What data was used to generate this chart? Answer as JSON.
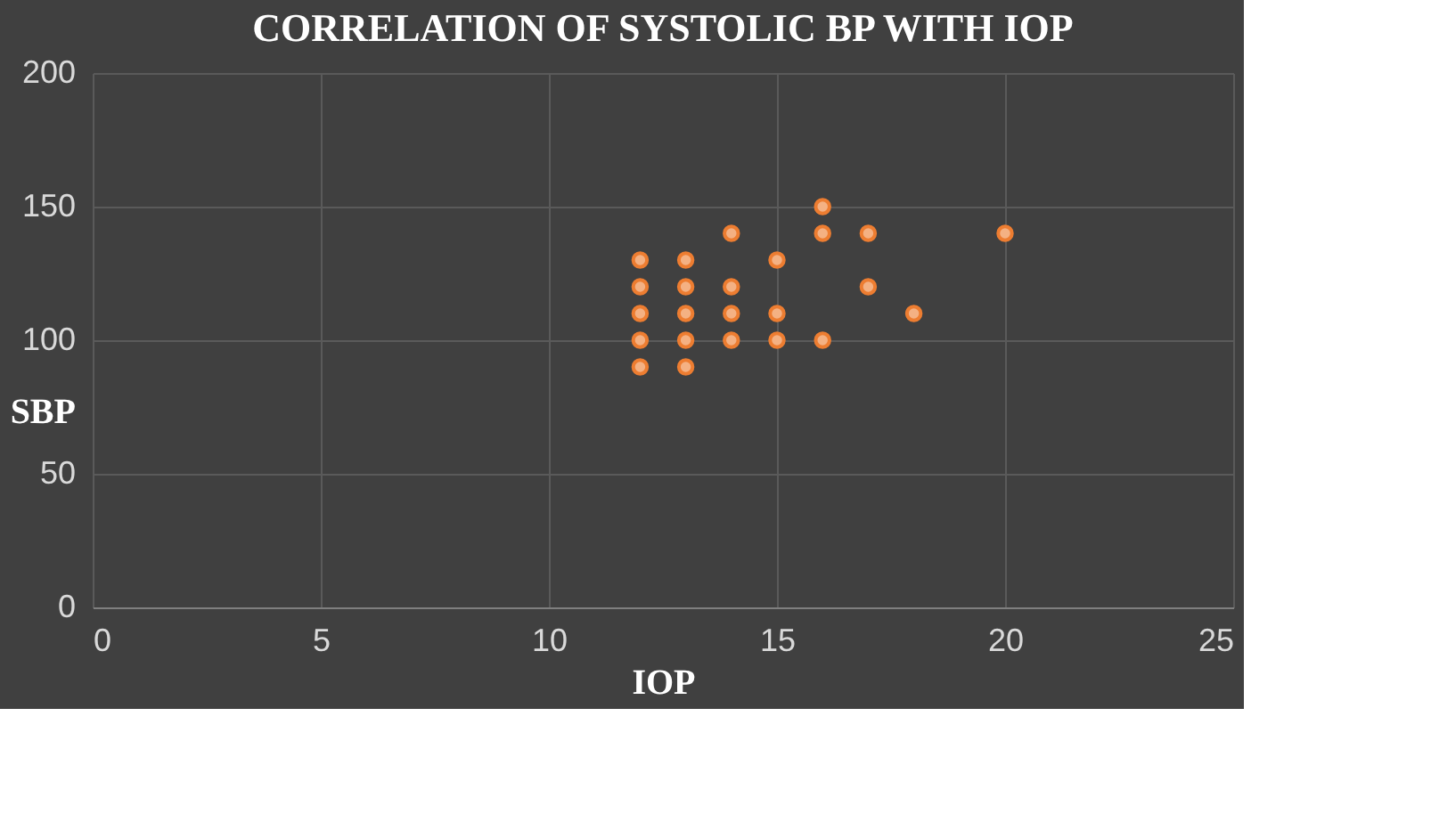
{
  "chart_data": {
    "type": "scatter",
    "title": "CORRELATION OF SYSTOLIC BP WITH IOP",
    "xlabel": "IOP",
    "ylabel": "SBP",
    "x": [
      12,
      12,
      12,
      12,
      12,
      13,
      13,
      13,
      13,
      13,
      14,
      14,
      14,
      14,
      15,
      15,
      15,
      16,
      16,
      16,
      17,
      17,
      18,
      20
    ],
    "series": [
      {
        "color": "#f4b183",
        "values": [
          90,
          100,
          110,
          120,
          130,
          90,
          100,
          110,
          120,
          130,
          100,
          110,
          120,
          140,
          100,
          110,
          130,
          100,
          140,
          150,
          120,
          140,
          110,
          140
        ]
      }
    ],
    "xlim": [
      0,
      25
    ],
    "xticks": [
      0,
      5,
      10,
      15,
      20,
      25
    ],
    "ylim": [
      0,
      200
    ],
    "yticks": [
      0,
      50,
      100,
      150,
      200
    ],
    "grid": true,
    "marker": "circle",
    "legend": false
  }
}
